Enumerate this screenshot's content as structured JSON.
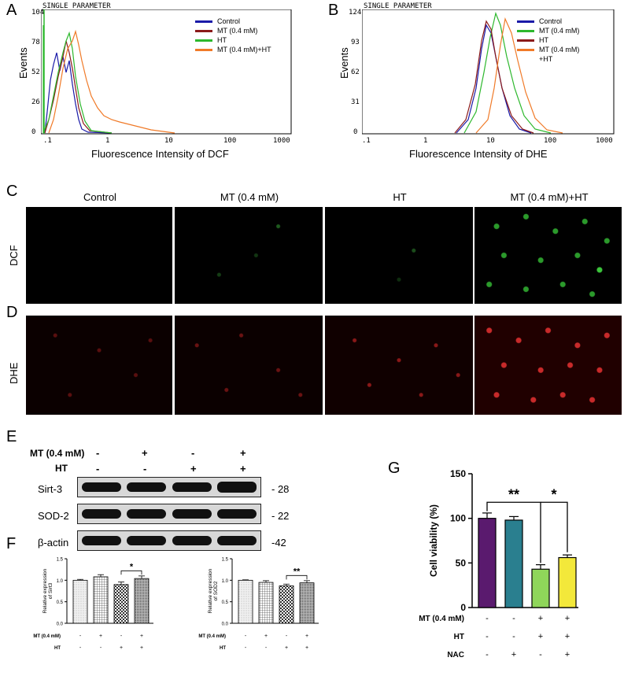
{
  "panels": {
    "A": "A",
    "B": "B",
    "C": "C",
    "D": "D",
    "E": "E",
    "F": "F",
    "G": "G"
  },
  "flow_A": {
    "header": "SINGLE PARAMETER",
    "ylabel": "Events",
    "xlabel": "Fluorescence Intensity of DCF",
    "yticks": [
      "0",
      "26",
      "52",
      "78",
      "104"
    ],
    "xticks": [
      ".1",
      "1",
      "10",
      "100",
      "1000"
    ],
    "legend": [
      {
        "name": "Control",
        "color": "#1a1aa8"
      },
      {
        "name": "MT (0.4 mM)",
        "color": "#8b1a1a"
      },
      {
        "name": "HT",
        "color": "#2db82d"
      },
      {
        "name": "MT (0.4 mM)+HT",
        "color": "#f07a28"
      }
    ]
  },
  "flow_B": {
    "header": "SINGLE PARAMETER",
    "ylabel": "Events",
    "xlabel": "Fluorescence Intensity of DHE",
    "yticks": [
      "0",
      "31",
      "62",
      "93",
      "124"
    ],
    "xticks": [
      ".1",
      "1",
      "10",
      "100",
      "1000"
    ],
    "legend": [
      {
        "name": "Control",
        "color": "#1a1aa8"
      },
      {
        "name": "MT (0.4 mM)",
        "color": "#2db82d"
      },
      {
        "name": "HT",
        "color": "#8b1a1a"
      },
      {
        "name": "MT (0.4 mM)",
        "name2": "+HT",
        "color": "#f07a28"
      }
    ]
  },
  "micro": {
    "columns": [
      "Control",
      "MT (0.4 mM)",
      "HT",
      "MT (0.4 mM)+HT"
    ],
    "rows": [
      "DCF",
      "DHE"
    ]
  },
  "western": {
    "mt_label": "MT (0.4 mM)",
    "ht_label": "HT",
    "mt_signs": [
      "-",
      "+",
      "-",
      "+"
    ],
    "ht_signs": [
      "-",
      "-",
      "+",
      "+"
    ],
    "rows": [
      {
        "label": "Sirt-3",
        "kda": "- 28"
      },
      {
        "label": "SOD-2",
        "kda": "- 22"
      },
      {
        "label": "β-actin",
        "kda": "-42"
      }
    ]
  },
  "bar_F1": {
    "ylabel1": "Relative expression",
    "ylabel2": "of Sirt3",
    "yticks": [
      "0.0",
      "0.5",
      "1.0",
      "1.5"
    ],
    "sig": "*",
    "mt_label": "MT (0.4 mM)",
    "ht_label": "HT",
    "mt_signs": [
      "-",
      "+",
      "-",
      "+"
    ],
    "ht_signs": [
      "-",
      "-",
      "+",
      "+"
    ]
  },
  "bar_F2": {
    "ylabel1": "Relative expression",
    "ylabel2": "of SOD2",
    "yticks": [
      "0.0",
      "0.5",
      "1.0",
      "1.5"
    ],
    "sig": "**",
    "mt_label": "MT (0.4 mM)",
    "ht_label": "HT",
    "mt_signs": [
      "-",
      "+",
      "-",
      "+"
    ],
    "ht_signs": [
      "-",
      "-",
      "+",
      "+"
    ]
  },
  "bar_G": {
    "ylabel": "Cell viability (%)",
    "yticks": [
      "0",
      "50",
      "100",
      "150"
    ],
    "sig1": "**",
    "sig2": "*",
    "mt_label": "MT (0.4 mM)",
    "ht_label": "HT",
    "nac_label": "NAC",
    "mt_signs": [
      "-",
      "-",
      "+",
      "+"
    ],
    "ht_signs": [
      "-",
      "-",
      "+",
      "+"
    ],
    "nac_signs": [
      "-",
      "+",
      "-",
      "+"
    ]
  },
  "chart_data": [
    {
      "type": "bar",
      "id": "F1",
      "categories": [
        "1",
        "2",
        "3",
        "4"
      ],
      "values": [
        1.0,
        1.08,
        0.9,
        1.04
      ],
      "errors": [
        0.02,
        0.05,
        0.06,
        0.06
      ],
      "ylim": [
        0,
        1.5
      ],
      "patterns": [
        "dots",
        "grid",
        "checker",
        "dense"
      ]
    },
    {
      "type": "bar",
      "id": "F2",
      "categories": [
        "1",
        "2",
        "3",
        "4"
      ],
      "values": [
        1.0,
        0.95,
        0.87,
        0.94
      ],
      "errors": [
        0.01,
        0.04,
        0.04,
        0.05
      ],
      "ylim": [
        0,
        1.5
      ],
      "patterns": [
        "dots",
        "grid",
        "checker",
        "dense"
      ]
    },
    {
      "type": "bar",
      "id": "G",
      "categories": [
        "1",
        "2",
        "3",
        "4"
      ],
      "values": [
        100,
        98,
        43,
        56
      ],
      "errors": [
        6,
        4,
        5,
        3
      ],
      "ylim": [
        0,
        150
      ],
      "colors": [
        "#5a1a6e",
        "#2a7f8f",
        "#8fd65a",
        "#f3e83a"
      ]
    }
  ]
}
